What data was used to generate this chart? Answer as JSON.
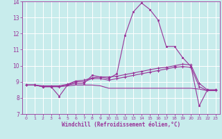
{
  "xlabel": "Windchill (Refroidissement éolien,°C)",
  "background_color": "#c8ecec",
  "grid_color": "#ffffff",
  "line_color": "#993399",
  "xlim": [
    -0.5,
    23.5
  ],
  "ylim": [
    7,
    14
  ],
  "yticks": [
    7,
    8,
    9,
    10,
    11,
    12,
    13,
    14
  ],
  "xticks": [
    0,
    1,
    2,
    3,
    4,
    5,
    6,
    7,
    8,
    9,
    10,
    11,
    12,
    13,
    14,
    15,
    16,
    17,
    18,
    19,
    20,
    21,
    22,
    23
  ],
  "series": {
    "line1_main": {
      "x": [
        0,
        1,
        2,
        3,
        4,
        5,
        6,
        7,
        8,
        9,
        10,
        11,
        12,
        13,
        14,
        15,
        16,
        17,
        18,
        19,
        20,
        21,
        22,
        23
      ],
      "y": [
        8.8,
        8.8,
        8.7,
        8.7,
        8.1,
        8.8,
        8.9,
        8.9,
        9.4,
        9.3,
        9.2,
        9.5,
        11.9,
        13.35,
        13.9,
        13.5,
        12.85,
        11.2,
        11.2,
        10.5,
        9.95,
        7.5,
        8.5,
        8.5
      ]
    },
    "line2_rising": {
      "x": [
        0,
        1,
        2,
        3,
        4,
        5,
        6,
        7,
        8,
        9,
        10,
        11,
        12,
        13,
        14,
        15,
        16,
        17,
        18,
        19,
        20,
        21,
        22,
        23
      ],
      "y": [
        8.8,
        8.8,
        8.75,
        8.75,
        8.75,
        8.85,
        9.05,
        9.1,
        9.25,
        9.3,
        9.3,
        9.35,
        9.45,
        9.55,
        9.65,
        9.75,
        9.85,
        9.9,
        10.0,
        10.1,
        10.05,
        8.9,
        8.5,
        8.5
      ]
    },
    "line3_mid": {
      "x": [
        0,
        1,
        2,
        3,
        4,
        5,
        6,
        7,
        8,
        9,
        10,
        11,
        12,
        13,
        14,
        15,
        16,
        17,
        18,
        19,
        20,
        21,
        22,
        23
      ],
      "y": [
        8.8,
        8.8,
        8.7,
        8.7,
        8.7,
        8.8,
        9.0,
        9.0,
        9.2,
        9.2,
        9.1,
        9.2,
        9.3,
        9.4,
        9.5,
        9.6,
        9.7,
        9.8,
        9.9,
        9.95,
        9.9,
        8.7,
        8.45,
        8.45
      ]
    },
    "line4_flat": {
      "x": [
        0,
        1,
        2,
        3,
        4,
        5,
        6,
        7,
        8,
        9,
        10,
        11,
        12,
        13,
        14,
        15,
        16,
        17,
        18,
        19,
        20,
        21,
        22,
        23
      ],
      "y": [
        8.8,
        8.8,
        8.7,
        8.7,
        8.7,
        8.75,
        8.8,
        8.8,
        8.8,
        8.75,
        8.6,
        8.6,
        8.6,
        8.6,
        8.6,
        8.6,
        8.6,
        8.6,
        8.6,
        8.6,
        8.6,
        8.55,
        8.45,
        8.45
      ]
    }
  }
}
